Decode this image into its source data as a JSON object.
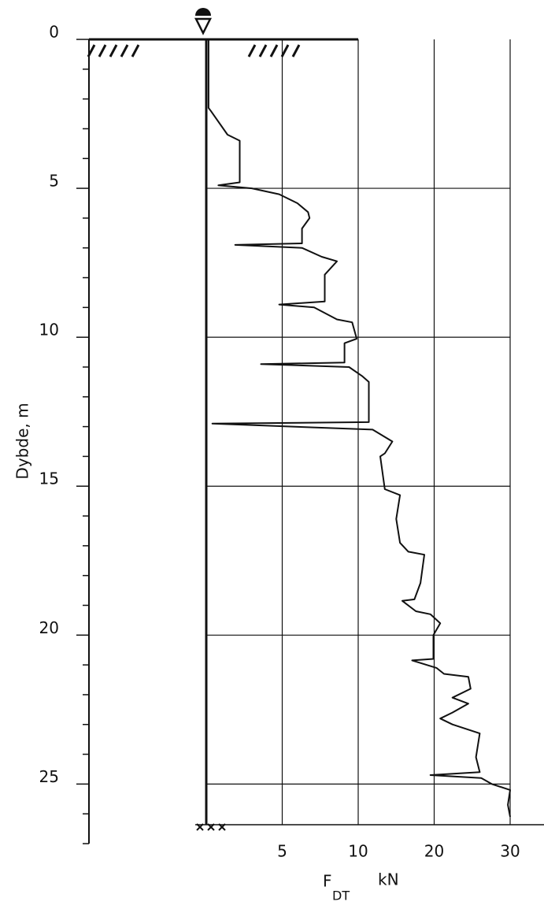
{
  "chart_data": {
    "type": "line",
    "ylabel": "Dybde, m",
    "xlabel": "F",
    "xlabel_subscript": "DT",
    "xlabel_unit": "kN",
    "xlim": [
      0,
      30
    ],
    "xticks": [
      5,
      10,
      20,
      30
    ],
    "ylim": [
      0,
      27
    ],
    "yticks": [
      0,
      5,
      10,
      15,
      20,
      25
    ],
    "yminorticks": [
      1,
      2,
      3,
      4,
      6,
      7,
      8,
      9,
      11,
      12,
      13,
      14,
      16,
      17,
      18,
      19,
      21,
      22,
      23,
      24,
      26,
      27
    ],
    "grid": true,
    "color": "#111111",
    "x": [
      0.15,
      0.15,
      0.3,
      1.4,
      2.2,
      2.2,
      0.8,
      3.0,
      4.8,
      6.0,
      6.7,
      6.8,
      6.3,
      6.3,
      1.9,
      6.3,
      7.6,
      8.6,
      7.8,
      7.8,
      4.8,
      7.1,
      8.6,
      9.6,
      9.9,
      9.1,
      9.1,
      3.6,
      9.4,
      10.5,
      11.4,
      11.4,
      0.4,
      11.9,
      14.5,
      13.5,
      12.9,
      13.5,
      15.5,
      15.0,
      15.5,
      16.6,
      18.7,
      18.2,
      17.4,
      15.8,
      17.6,
      19.5,
      20.8,
      19.9,
      19.9,
      17.1,
      20.3,
      21.3,
      24.5,
      24.8,
      22.4,
      24.5,
      22.4,
      20.8,
      22.4,
      26.0,
      25.5,
      26.0,
      19.5,
      26.2,
      27.6,
      30,
      29.7,
      30
    ],
    "values": [
      0,
      2.3,
      2.4,
      3.2,
      3.4,
      4.8,
      4.9,
      5.0,
      5.2,
      5.5,
      5.8,
      6.0,
      6.35,
      6.85,
      6.9,
      7.0,
      7.3,
      7.45,
      7.9,
      8.8,
      8.9,
      9.0,
      9.4,
      9.5,
      10.05,
      10.2,
      10.85,
      10.9,
      11.0,
      11.3,
      11.5,
      12.85,
      12.9,
      13.1,
      13.5,
      13.9,
      14.0,
      15.1,
      15.3,
      16.1,
      16.9,
      17.2,
      17.3,
      18.25,
      18.8,
      18.85,
      19.2,
      19.3,
      19.6,
      20.0,
      20.8,
      20.85,
      21.1,
      21.3,
      21.4,
      21.8,
      22.1,
      22.3,
      22.6,
      22.8,
      23.0,
      23.3,
      24.1,
      24.6,
      24.7,
      24.8,
      25.0,
      25.2,
      25.7,
      26.1
    ]
  }
}
